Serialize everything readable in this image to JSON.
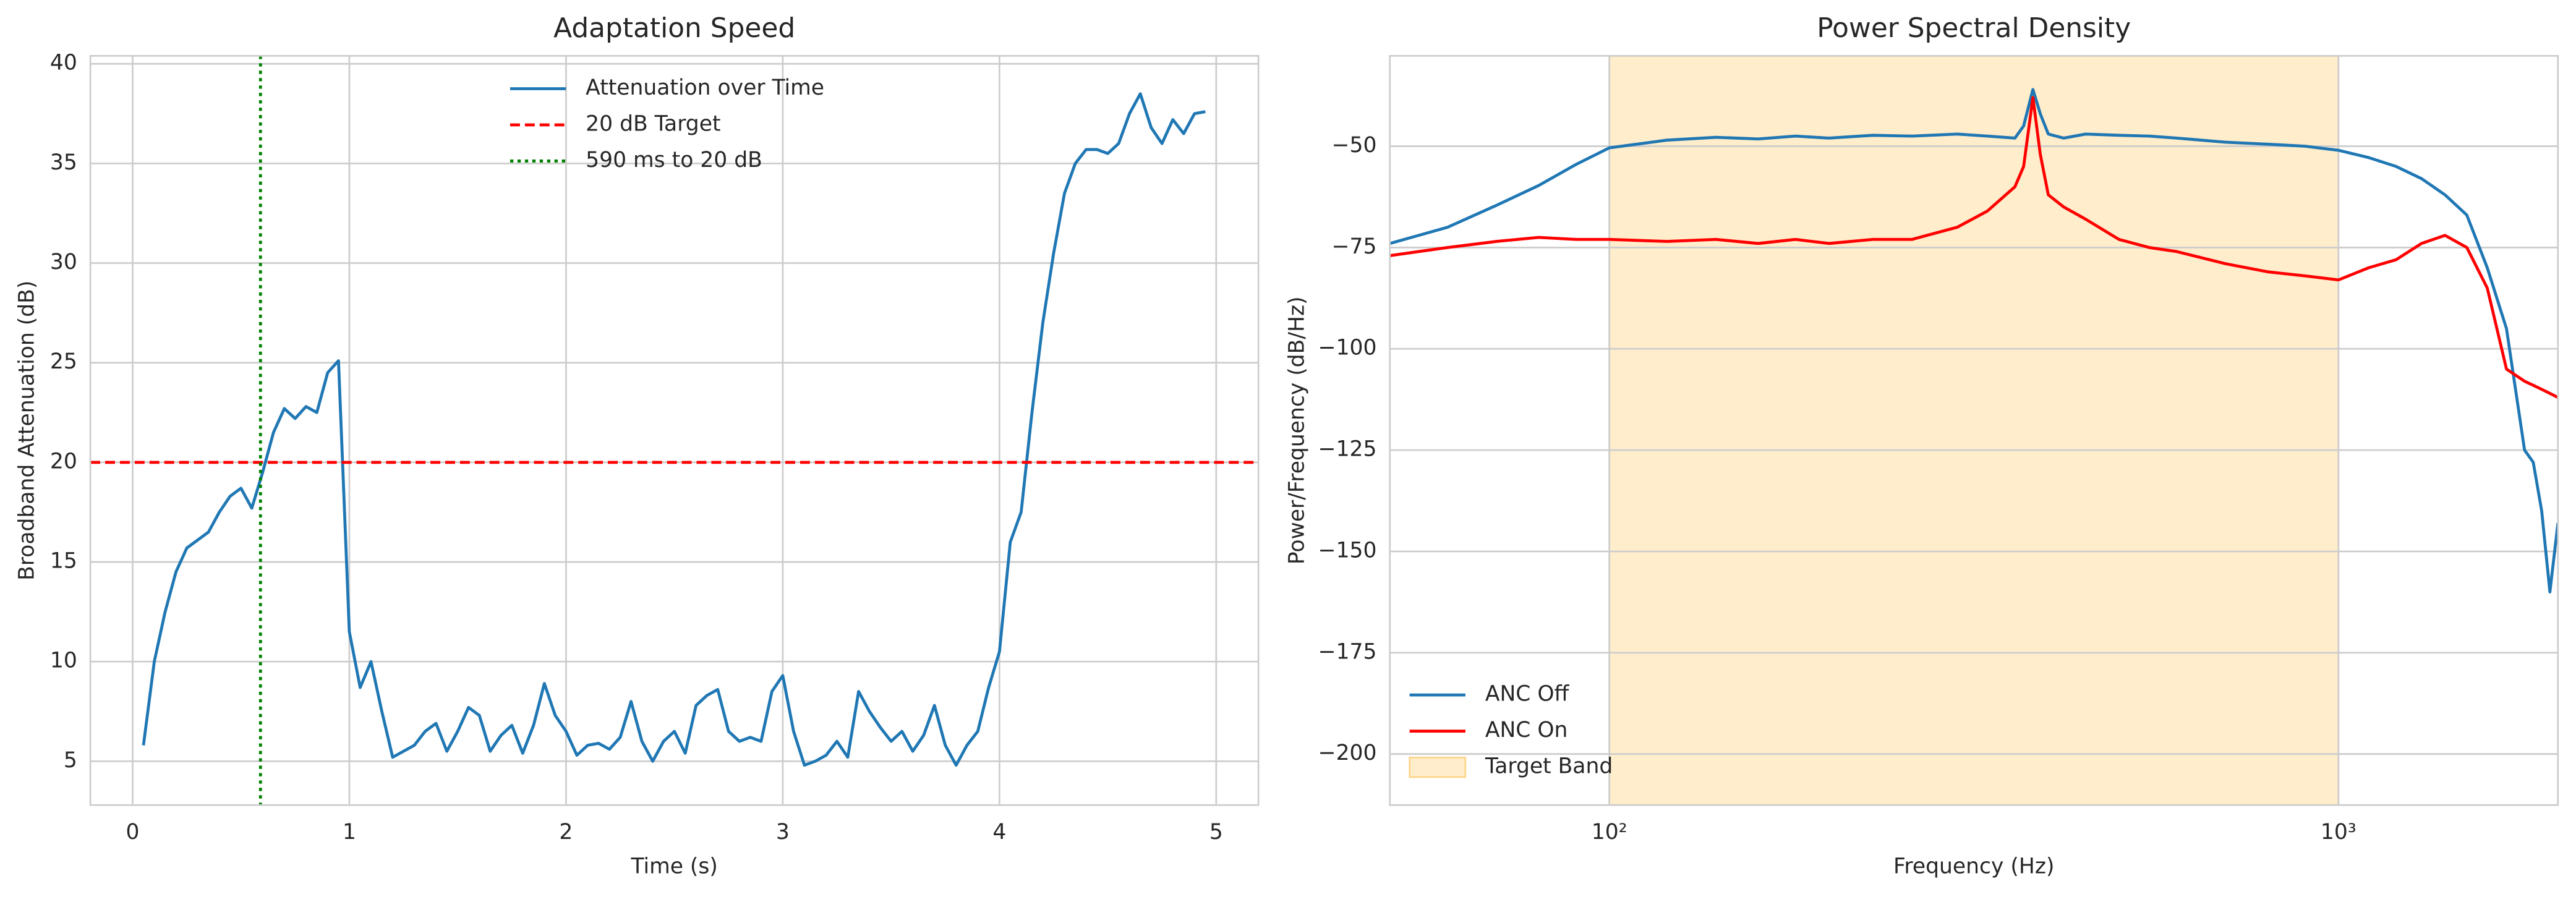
{
  "chart_data": [
    {
      "type": "line",
      "title": "Adaptation Speed",
      "xlabel": "Time (s)",
      "ylabel": "Broadband Attenuation (dB)",
      "x": [
        0.05,
        0.1,
        0.15,
        0.2,
        0.25,
        0.3,
        0.35,
        0.4,
        0.45,
        0.5,
        0.55,
        0.6,
        0.65,
        0.7,
        0.75,
        0.8,
        0.85,
        0.9,
        0.95,
        1.0,
        1.05,
        1.1,
        1.15,
        1.2,
        1.25,
        1.3,
        1.35,
        1.4,
        1.45,
        1.5,
        1.55,
        1.6,
        1.65,
        1.7,
        1.75,
        1.8,
        1.85,
        1.9,
        1.95,
        2.0,
        2.05,
        2.1,
        2.15,
        2.2,
        2.25,
        2.3,
        2.35,
        2.4,
        2.45,
        2.5,
        2.55,
        2.6,
        2.65,
        2.7,
        2.75,
        2.8,
        2.85,
        2.9,
        2.95,
        3.0,
        3.05,
        3.1,
        3.15,
        3.2,
        3.25,
        3.3,
        3.35,
        3.4,
        3.45,
        3.5,
        3.55,
        3.6,
        3.65,
        3.7,
        3.75,
        3.8,
        3.85,
        3.9,
        3.95,
        4.0,
        4.05,
        4.1,
        4.15,
        4.2,
        4.25,
        4.3,
        4.35,
        4.4,
        4.45,
        4.5,
        4.55,
        4.6,
        4.65,
        4.7,
        4.75,
        4.8,
        4.85,
        4.9,
        4.95
      ],
      "series": [
        {
          "name": "Attenuation over Time",
          "color": "#1f77b4",
          "values": [
            5.8,
            10,
            12.5,
            14.5,
            15.7,
            16.1,
            16.5,
            17.5,
            18.3,
            18.7,
            17.7,
            19.5,
            21.5,
            22.7,
            22.2,
            22.8,
            22.5,
            24.5,
            25.1,
            11.5,
            8.7,
            10,
            7.5,
            5.2,
            5.5,
            5.8,
            6.5,
            6.9,
            5.5,
            6.5,
            7.7,
            7.3,
            5.5,
            6.3,
            6.8,
            5.4,
            6.8,
            8.9,
            7.3,
            6.5,
            5.3,
            5.8,
            5.9,
            5.6,
            6.2,
            8.0,
            6.0,
            5.0,
            6.0,
            6.5,
            5.4,
            7.8,
            8.3,
            8.6,
            6.5,
            6.0,
            6.2,
            6.0,
            8.5,
            9.3,
            6.5,
            4.8,
            5.0,
            5.3,
            6.0,
            5.2,
            8.5,
            7.5,
            6.7,
            6.0,
            6.5,
            5.5,
            6.3,
            7.8,
            5.8,
            4.8,
            5.8,
            6.5,
            8.7,
            10.5,
            16,
            17.5,
            22.5,
            27,
            30.5,
            33.5,
            35,
            35.7,
            35.7,
            35.5,
            36,
            37.5,
            38.5,
            36.8,
            36,
            37.2,
            36.5,
            37.5,
            37.6
          ]
        }
      ],
      "hlines": [
        {
          "name": "20 dB Target",
          "value": 20,
          "color": "red",
          "style": "dashed"
        }
      ],
      "vlines": [
        {
          "name": "590 ms to 20 dB",
          "value": 0.59,
          "color": "green",
          "style": "dotted"
        }
      ],
      "xlim": [
        -0.195,
        5.195
      ],
      "ylim": [
        2.8,
        40.4
      ],
      "xticks": [
        0,
        1,
        2,
        3,
        4,
        5
      ],
      "yticks": [
        5,
        10,
        15,
        20,
        25,
        30,
        35,
        40
      ],
      "grid": true,
      "legend": "upper center"
    },
    {
      "type": "line",
      "title": "Power Spectral Density",
      "xlabel": "Frequency (Hz)",
      "ylabel": "Power/Frequency (dB/Hz)",
      "xscale": "log",
      "x": [
        50,
        60,
        70,
        80,
        90,
        100,
        120,
        140,
        160,
        180,
        200,
        230,
        260,
        300,
        330,
        360,
        370,
        381,
        390,
        400,
        420,
        450,
        500,
        550,
        600,
        700,
        800,
        900,
        1000,
        1100,
        1200,
        1300,
        1400,
        1500,
        1600,
        1700,
        1800,
        1850,
        1900,
        1950,
        2000
      ],
      "series": [
        {
          "name": "ANC Off",
          "color": "#1f77b4",
          "values": [
            -74,
            -70,
            -64.6,
            -59.7,
            -54.5,
            -50.4,
            -48.5,
            -47.8,
            -48.2,
            -47.5,
            -48,
            -47.3,
            -47.5,
            -47,
            -47.5,
            -48,
            -45,
            -36,
            -42,
            -47,
            -48,
            -47,
            -47.3,
            -47.5,
            -48,
            -49,
            -49.5,
            -50,
            -51,
            -52.8,
            -55,
            -58,
            -62,
            -67,
            -80,
            -95,
            -125,
            -128,
            -140,
            -160,
            -143
          ]
        },
        {
          "name": "ANC On",
          "color": "red",
          "values": [
            -77,
            -75,
            -73.5,
            -72.5,
            -73,
            -73,
            -73.5,
            -73,
            -74,
            -73,
            -74,
            -73,
            -73,
            -70,
            -66,
            -60,
            -55,
            -38,
            -52,
            -62,
            -65,
            -68,
            -73,
            -75,
            -76,
            -79,
            -81,
            -82,
            -83,
            -80,
            -78,
            -74,
            -72,
            -75,
            -85,
            -105,
            -108,
            -109,
            -110,
            -111,
            -112
          ]
        }
      ],
      "spans": [
        {
          "name": "Target Band",
          "range": [
            100,
            1000
          ],
          "color": "#ffa500"
        }
      ],
      "xlim": [
        50,
        2000
      ],
      "ylim": [
        -212.6,
        -27.7
      ],
      "xticks": [
        {
          "value": 100,
          "label": "10²"
        },
        {
          "value": 1000,
          "label": "10³"
        }
      ],
      "yticks": [
        {
          "value": -200,
          "label": "−200"
        },
        {
          "value": -175,
          "label": "−175"
        },
        {
          "value": -150,
          "label": "−150"
        },
        {
          "value": -125,
          "label": "−125"
        },
        {
          "value": -100,
          "label": "−100"
        },
        {
          "value": -75,
          "label": "−75"
        },
        {
          "value": -50,
          "label": "−50"
        }
      ],
      "grid": true,
      "legend": "lower left"
    }
  ]
}
